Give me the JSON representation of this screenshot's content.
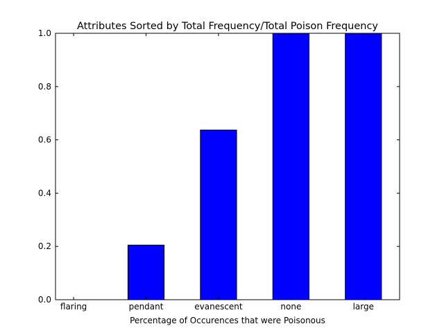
{
  "chart_data": {
    "type": "bar",
    "title": "Attributes Sorted by Total Frequency/Total Poison Frequency",
    "xlabel": "Percentage of Occurences that were Poisonous",
    "ylabel": "",
    "categories": [
      "flaring",
      "pendant",
      "evanescent",
      "none",
      "large"
    ],
    "values": [
      0.0,
      0.205,
      0.637,
      1.0,
      1.0
    ],
    "ylim": [
      0.0,
      1.0
    ],
    "yticks": [
      "0.0",
      "0.2",
      "0.4",
      "0.6",
      "0.8",
      "1.0"
    ],
    "bar_color": "#0000ff",
    "grid": false,
    "legend": "none"
  }
}
